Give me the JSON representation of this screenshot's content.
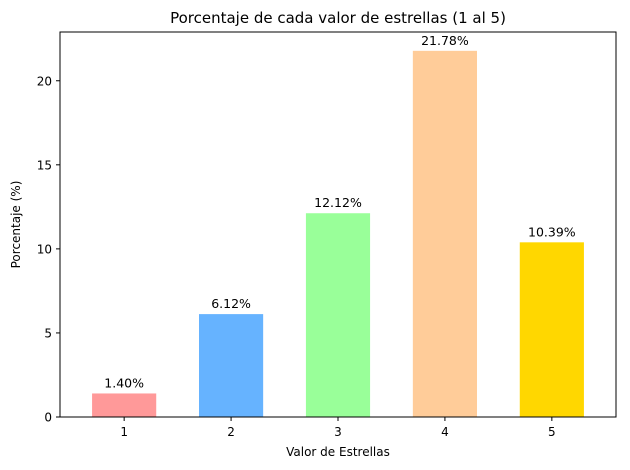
{
  "chart_data": {
    "type": "bar",
    "title": "Porcentaje de cada valor de estrellas (1 al 5)",
    "xlabel": "Valor de Estrellas",
    "ylabel": "Porcentaje (%)",
    "categories": [
      "1",
      "2",
      "3",
      "4",
      "5"
    ],
    "values": [
      1.4,
      6.12,
      12.12,
      21.78,
      10.39
    ],
    "data_labels": [
      "1.40%",
      "6.12%",
      "12.12%",
      "21.78%",
      "10.39%"
    ],
    "colors": [
      "#ff9999",
      "#66b3ff",
      "#99ff99",
      "#ffcc99",
      "#ffd700"
    ],
    "ylim": [
      0,
      22.9
    ],
    "yticks": [
      0,
      5,
      10,
      15,
      20
    ],
    "grid": false,
    "legend": "none"
  }
}
